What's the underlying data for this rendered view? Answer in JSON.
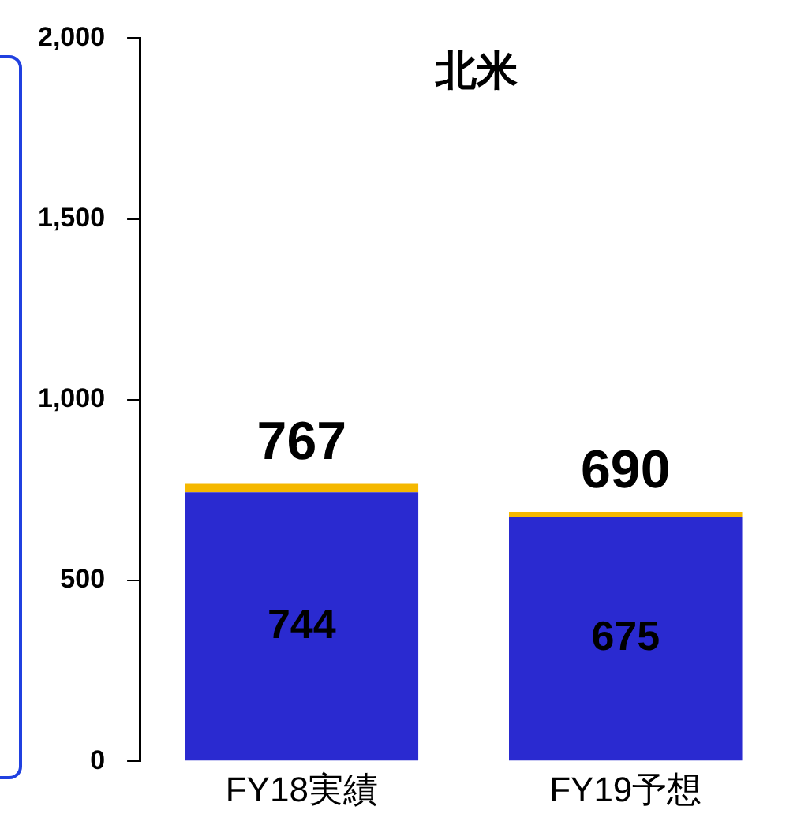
{
  "chart_data": {
    "type": "bar",
    "title": "北米",
    "categories": [
      "FY18実績",
      "FY19予想"
    ],
    "stacked": true,
    "series": [
      {
        "color": "#2a2ad0",
        "values": [
          744,
          675
        ],
        "value_labels": [
          "744",
          "675"
        ]
      },
      {
        "color": "#f5b800",
        "values": [
          23,
          15
        ]
      }
    ],
    "totals": [
      "767",
      "690"
    ],
    "ylim": [
      0,
      2000
    ],
    "yticks": [
      {
        "value": 0,
        "label": "0"
      },
      {
        "value": 500,
        "label": "500"
      },
      {
        "value": 1000,
        "label": "1,000"
      },
      {
        "value": 1500,
        "label": "1,500"
      },
      {
        "value": 2000,
        "label": "2,000"
      }
    ],
    "grid": false,
    "legend": false
  }
}
